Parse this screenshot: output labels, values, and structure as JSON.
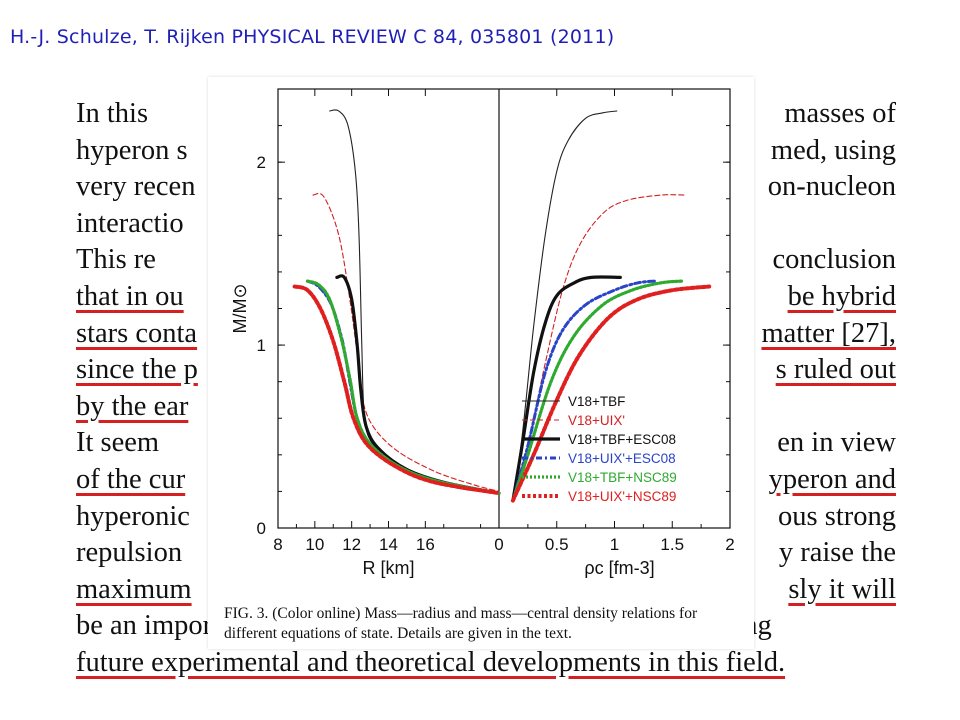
{
  "header": {
    "citation": "H.-J. Schulze, T. Rijken PHYSICAL REVIEW C 84, 035801 (2011)"
  },
  "paper_text": {
    "lines": [
      [
        "In this",
        "masses of"
      ],
      [
        "hyperon s",
        "med, using"
      ],
      [
        "very recen",
        "on-nucleon"
      ],
      [
        "interactio",
        ""
      ],
      [
        "This re",
        "conclusion"
      ],
      [
        "that in ou",
        "be hybrid"
      ],
      [
        "stars conta",
        "matter [27],"
      ],
      [
        "since the p",
        "s ruled out"
      ],
      [
        "by the ear",
        ""
      ],
      [
        "It seem",
        "en in view"
      ],
      [
        "of the cur",
        "yperon and"
      ],
      [
        "hyperonic",
        "ous strong"
      ],
      [
        "repulsion",
        "y raise the"
      ],
      [
        "maximum",
        "sly it will"
      ],
      [
        "be an important task for the future to verify this by following",
        ""
      ],
      [
        "future experimental and theoretical developments in this field.",
        ""
      ]
    ]
  },
  "caption": {
    "label": "FIG. 3. (Color online)",
    "text": " Mass—radius and mass—central density relations for different equations of state. Details are given in the text."
  },
  "chart_data": [
    {
      "type": "line",
      "panel": "left",
      "xlabel": "R [km]",
      "ylabel": "M/M⊙",
      "xlim": [
        8,
        20
      ],
      "x_reversed_note": "",
      "ylim": [
        0,
        2.4
      ],
      "xticks": [
        "8",
        "10",
        "12",
        "14",
        "16",
        "0"
      ],
      "yticks": [
        "0",
        "1",
        "2"
      ],
      "series": [
        {
          "name": "V18+TBF",
          "color": "#222222",
          "style": "thin",
          "points": [
            [
              10.8,
              2.28
            ],
            [
              11.3,
              2.28
            ],
            [
              11.8,
              2.2
            ],
            [
              12.2,
              1.95
            ],
            [
              12.4,
              1.6
            ],
            [
              12.55,
              1.0
            ],
            [
              12.7,
              0.6
            ],
            [
              13.2,
              0.45
            ],
            [
              14.5,
              0.33
            ],
            [
              16.5,
              0.25
            ],
            [
              18.2,
              0.21
            ],
            [
              20.0,
              0.19
            ]
          ]
        },
        {
          "name": "V18+UIX'",
          "color": "#d42020",
          "style": "dashed-thin",
          "points": [
            [
              9.9,
              1.82
            ],
            [
              10.5,
              1.81
            ],
            [
              11.3,
              1.6
            ],
            [
              11.9,
              1.25
            ],
            [
              12.3,
              0.95
            ],
            [
              12.6,
              0.7
            ],
            [
              13.2,
              0.55
            ],
            [
              14.5,
              0.42
            ],
            [
              16.5,
              0.31
            ],
            [
              18.5,
              0.24
            ],
            [
              20.0,
              0.2
            ]
          ]
        },
        {
          "name": "V18+TBF+ESC08",
          "color": "#111111",
          "style": "thick",
          "points": [
            [
              11.2,
              1.37
            ],
            [
              11.6,
              1.37
            ],
            [
              12.0,
              1.25
            ],
            [
              12.3,
              1.0
            ],
            [
              12.5,
              0.75
            ],
            [
              12.8,
              0.55
            ],
            [
              13.5,
              0.43
            ],
            [
              15.0,
              0.32
            ],
            [
              17.0,
              0.25
            ],
            [
              20.0,
              0.19
            ]
          ]
        },
        {
          "name": "V18+UIX'+ESC08",
          "color": "#2a44c8",
          "style": "dashdot-thick",
          "points": [
            [
              9.6,
              1.35
            ],
            [
              10.2,
              1.32
            ],
            [
              10.9,
              1.22
            ],
            [
              11.5,
              1.02
            ],
            [
              11.9,
              0.8
            ],
            [
              12.3,
              0.6
            ],
            [
              13.0,
              0.46
            ],
            [
              14.5,
              0.34
            ],
            [
              16.5,
              0.26
            ],
            [
              20.0,
              0.19
            ]
          ]
        },
        {
          "name": "V18+TBF+NSC89",
          "color": "#2faa2f",
          "style": "dotted-thick",
          "points": [
            [
              9.6,
              1.35
            ],
            [
              10.2,
              1.33
            ],
            [
              10.8,
              1.25
            ],
            [
              11.4,
              1.05
            ],
            [
              11.9,
              0.82
            ],
            [
              12.3,
              0.6
            ],
            [
              13.0,
              0.46
            ],
            [
              14.5,
              0.34
            ],
            [
              16.5,
              0.26
            ],
            [
              20.0,
              0.19
            ]
          ]
        },
        {
          "name": "V18+UIX'+NSC89",
          "color": "#e01f1f",
          "style": "dotted-thicker",
          "points": [
            [
              8.9,
              1.32
            ],
            [
              9.6,
              1.3
            ],
            [
              10.3,
              1.2
            ],
            [
              11.0,
              1.02
            ],
            [
              11.6,
              0.8
            ],
            [
              12.1,
              0.6
            ],
            [
              12.9,
              0.45
            ],
            [
              14.5,
              0.33
            ],
            [
              16.5,
              0.25
            ],
            [
              20.0,
              0.19
            ]
          ]
        }
      ]
    },
    {
      "type": "line",
      "panel": "right",
      "xlabel": "ρc [fm-3]",
      "ylabel": "",
      "xlim": [
        0,
        2
      ],
      "ylim": [
        0,
        2.4
      ],
      "xticks": [
        "0.5",
        "1",
        "1.5",
        "2"
      ],
      "legend_position": "bottom-right",
      "series": [
        {
          "name": "V18+TBF",
          "color": "#222222",
          "style": "thin",
          "points": [
            [
              0.12,
              0.15
            ],
            [
              0.2,
              0.5
            ],
            [
              0.3,
              1.1
            ],
            [
              0.4,
              1.6
            ],
            [
              0.5,
              1.95
            ],
            [
              0.6,
              2.12
            ],
            [
              0.75,
              2.24
            ],
            [
              0.9,
              2.27
            ],
            [
              1.02,
              2.28
            ]
          ]
        },
        {
          "name": "V18+UIX'",
          "color": "#d42020",
          "style": "dashed-thin",
          "points": [
            [
              0.12,
              0.15
            ],
            [
              0.25,
              0.45
            ],
            [
              0.4,
              0.9
            ],
            [
              0.55,
              1.3
            ],
            [
              0.7,
              1.55
            ],
            [
              0.9,
              1.72
            ],
            [
              1.1,
              1.79
            ],
            [
              1.4,
              1.82
            ],
            [
              1.62,
              1.82
            ]
          ]
        },
        {
          "name": "V18+TBF+ESC08",
          "color": "#111111",
          "style": "thick",
          "points": [
            [
              0.12,
              0.15
            ],
            [
              0.2,
              0.45
            ],
            [
              0.3,
              0.85
            ],
            [
              0.4,
              1.12
            ],
            [
              0.5,
              1.27
            ],
            [
              0.65,
              1.34
            ],
            [
              0.8,
              1.37
            ],
            [
              1.05,
              1.37
            ]
          ]
        },
        {
          "name": "V18+UIX'+ESC08",
          "color": "#2a44c8",
          "style": "dashdot-thick",
          "points": [
            [
              0.12,
              0.15
            ],
            [
              0.25,
              0.45
            ],
            [
              0.4,
              0.85
            ],
            [
              0.55,
              1.08
            ],
            [
              0.75,
              1.22
            ],
            [
              1.0,
              1.3
            ],
            [
              1.2,
              1.34
            ],
            [
              1.35,
              1.35
            ]
          ]
        },
        {
          "name": "V18+TBF+NSC89",
          "color": "#2faa2f",
          "style": "dotted-thick",
          "points": [
            [
              0.12,
              0.15
            ],
            [
              0.25,
              0.4
            ],
            [
              0.45,
              0.8
            ],
            [
              0.65,
              1.05
            ],
            [
              0.9,
              1.22
            ],
            [
              1.15,
              1.3
            ],
            [
              1.4,
              1.34
            ],
            [
              1.58,
              1.35
            ]
          ]
        },
        {
          "name": "V18+UIX'+NSC89",
          "color": "#e01f1f",
          "style": "dotted-thicker",
          "points": [
            [
              0.12,
              0.15
            ],
            [
              0.3,
              0.4
            ],
            [
              0.5,
              0.7
            ],
            [
              0.7,
              0.95
            ],
            [
              0.95,
              1.15
            ],
            [
              1.2,
              1.25
            ],
            [
              1.5,
              1.3
            ],
            [
              1.82,
              1.32
            ]
          ]
        }
      ]
    }
  ]
}
